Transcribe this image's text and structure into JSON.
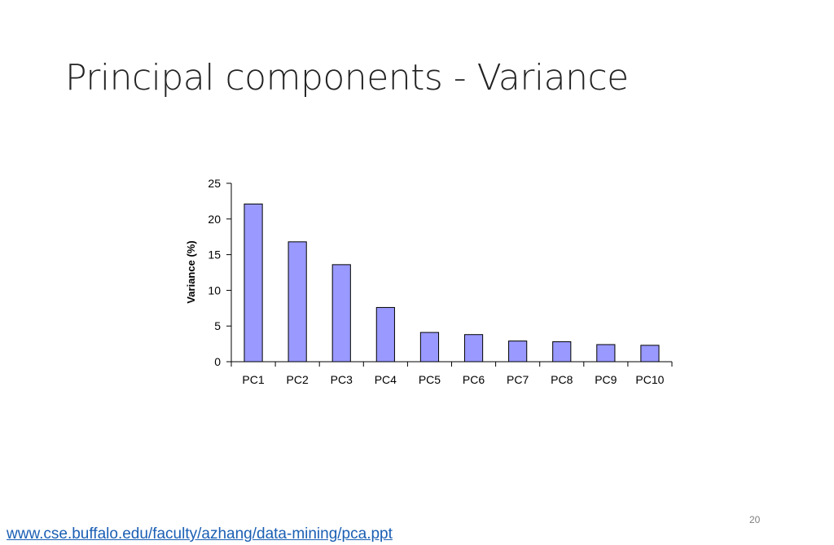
{
  "slide": {
    "title": "Principal components - Variance",
    "page_number": "20",
    "source_link": "www.cse.buffalo.edu/faculty/azhang/data-mining/pca.ppt"
  },
  "chart_data": {
    "type": "bar",
    "categories": [
      "PC1",
      "PC2",
      "PC3",
      "PC4",
      "PC5",
      "PC6",
      "PC7",
      "PC8",
      "PC9",
      "PC10"
    ],
    "values": [
      22.1,
      16.8,
      13.6,
      7.6,
      4.1,
      3.8,
      2.9,
      2.8,
      2.4,
      2.3
    ],
    "title": "",
    "xlabel": "",
    "ylabel": "Variance (%)",
    "ylim": [
      0,
      25
    ],
    "yticks": [
      0,
      5,
      10,
      15,
      20,
      25
    ],
    "grid": false,
    "bar_color": "#9999ff",
    "bar_edge_color": "#000000"
  }
}
